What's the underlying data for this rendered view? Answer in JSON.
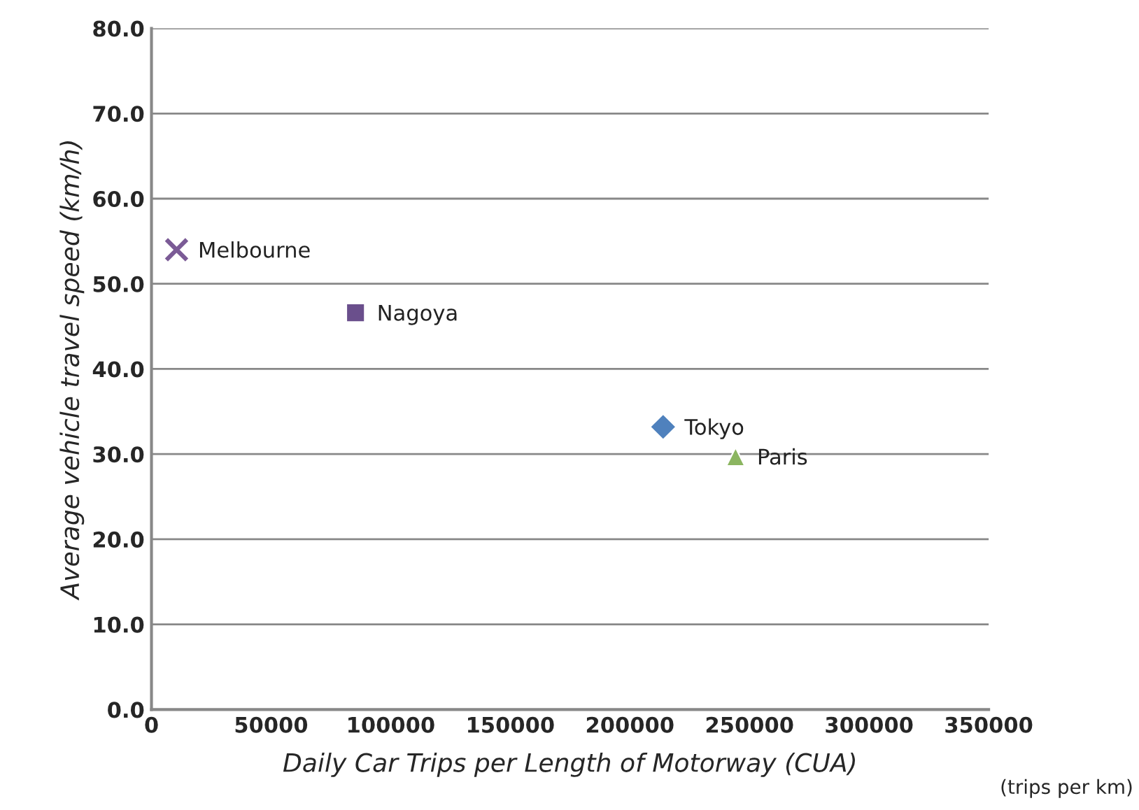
{
  "chart_data": {
    "type": "scatter",
    "xlabel": "Daily Car Trips per Length of Motorway (CUA)",
    "ylabel": "Average vehicle travel speed (km/h)",
    "annotations": [
      "(trips per km)"
    ],
    "series": [
      {
        "name": "Melbourne",
        "color": "#7b5b96",
        "marker": "cross",
        "x": [
          10500
        ],
        "values": [
          54
        ]
      },
      {
        "name": "Nagoya",
        "color": "#6a4f8c",
        "marker": "square",
        "x": [
          85300
        ],
        "values": [
          46.6
        ]
      },
      {
        "name": "Tokyo",
        "color": "#4f81bd",
        "marker": "diamond",
        "x": [
          213900
        ],
        "values": [
          33.2
        ]
      },
      {
        "name": "Paris",
        "color": "#8bb560",
        "marker": "triangle",
        "x": [
          244200
        ],
        "values": [
          29.7
        ]
      }
    ],
    "xlim": [
      0,
      350000
    ],
    "xticks": [
      0,
      50000,
      100000,
      150000,
      200000,
      250000,
      300000,
      350000
    ],
    "ylim": [
      0,
      80
    ],
    "yticks": [
      {
        "value": 0,
        "label": "0.0"
      },
      {
        "value": 10,
        "label": "10.0"
      },
      {
        "value": 20,
        "label": "20.0"
      },
      {
        "value": 30,
        "label": "30.0"
      },
      {
        "value": 40,
        "label": "40.0"
      },
      {
        "value": 50,
        "label": "50.0"
      },
      {
        "value": 60,
        "label": "60.0"
      },
      {
        "value": 70,
        "label": "70.0"
      },
      {
        "value": 80,
        "label": "80.0"
      }
    ],
    "grid": "y",
    "legend": false
  }
}
